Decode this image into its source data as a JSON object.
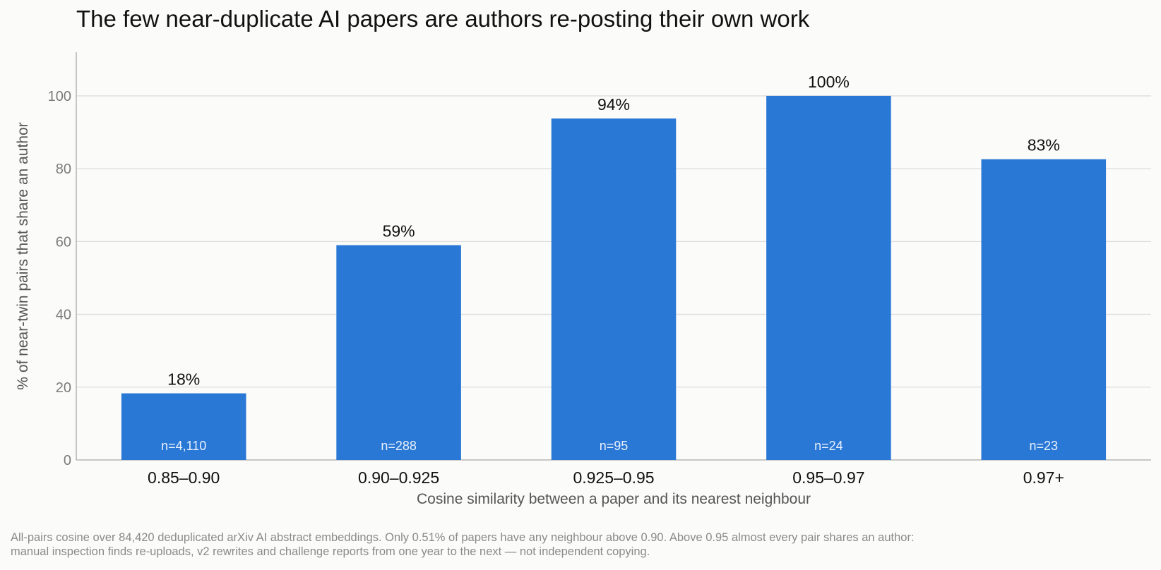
{
  "chart_data": {
    "type": "bar",
    "title": "The few near-duplicate AI papers are authors re-posting their own work",
    "xlabel": "Cosine similarity between a paper and its nearest neighbour",
    "ylabel": "% of near-twin pairs that share an author",
    "categories": [
      "0.85–0.90",
      "0.90–0.925",
      "0.925–0.95",
      "0.95–0.97",
      "0.97+"
    ],
    "values": [
      18.3,
      59,
      93.8,
      100,
      82.6
    ],
    "value_labels": [
      "18%",
      "59%",
      "94%",
      "100%",
      "83%"
    ],
    "n_labels": [
      "n=4,110",
      "n=288",
      "n=95",
      "n=24",
      "n=23"
    ],
    "ylim": [
      0,
      112
    ],
    "yticks": [
      0,
      20,
      40,
      60,
      80,
      100
    ],
    "grid": true,
    "bar_color": "#2a78d6"
  },
  "footnote": {
    "line1": "All-pairs cosine over 84,420 deduplicated arXiv AI abstract embeddings. Only 0.51% of papers have any neighbour above 0.90. Above 0.95 almost every pair shares an author:",
    "line2": "manual inspection finds re-uploads, v2 rewrites and challenge reports from one year to the next — not independent copying."
  }
}
